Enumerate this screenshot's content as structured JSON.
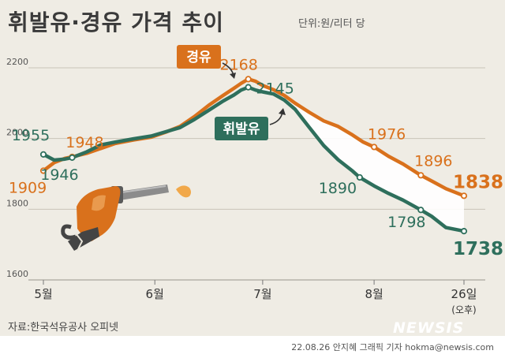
{
  "header": {
    "title": "휘발유·경유 가격 추이",
    "unit": "단위:원/리터 당"
  },
  "footer": {
    "source": "자료:한국석유공사 오피넷",
    "credit": "22.08.26 안지혜 그래픽 기자 hokma@newsis.com",
    "watermark": "NEWSIS"
  },
  "colors": {
    "diesel": "#d9711c",
    "gasoline": "#2e6f5c",
    "background": "#efece4",
    "gap_fill": "#ffffff",
    "grid": "#c9c4b8"
  },
  "icons": [
    "fuel-nozzle-icon",
    "fuel-drop-icon"
  ],
  "chart_data": {
    "type": "line",
    "title": "휘발유·경유 가격 추이",
    "xlabel": "",
    "ylabel": "",
    "ylim": [
      1600,
      2300
    ],
    "yticks": [
      1600,
      1800,
      2000,
      2200
    ],
    "x_ticks": [
      {
        "label": "5월",
        "day": 0
      },
      {
        "label": "6월",
        "day": 31
      },
      {
        "label": "7월",
        "day": 61
      },
      {
        "label": "8월",
        "day": 92
      },
      {
        "label": "26일",
        "sublabel": "(오후)",
        "day": 117
      }
    ],
    "grid": true,
    "series": [
      {
        "name": "경유",
        "color": "#d9711c",
        "labeled_points": [
          {
            "day": 0,
            "value": 1909,
            "label": "1909"
          },
          {
            "day": 8,
            "value": 1948,
            "label": "1948"
          },
          {
            "day": 57,
            "value": 2168,
            "label": "2168"
          },
          {
            "day": 92,
            "value": 1976,
            "label": "1976"
          },
          {
            "day": 105,
            "value": 1896,
            "label": "1896"
          },
          {
            "day": 117,
            "value": 1838,
            "label": "1838"
          }
        ],
        "values": [
          [
            0,
            1909
          ],
          [
            3,
            1932
          ],
          [
            6,
            1944
          ],
          [
            8,
            1948
          ],
          [
            12,
            1958
          ],
          [
            16,
            1972
          ],
          [
            20,
            1986
          ],
          [
            25,
            1996
          ],
          [
            30,
            2004
          ],
          [
            34,
            2018
          ],
          [
            38,
            2034
          ],
          [
            42,
            2062
          ],
          [
            46,
            2094
          ],
          [
            50,
            2122
          ],
          [
            53,
            2142
          ],
          [
            55,
            2156
          ],
          [
            57,
            2168
          ],
          [
            59,
            2162
          ],
          [
            61,
            2150
          ],
          [
            64,
            2138
          ],
          [
            67,
            2122
          ],
          [
            70,
            2100
          ],
          [
            74,
            2074
          ],
          [
            78,
            2050
          ],
          [
            82,
            2034
          ],
          [
            86,
            2010
          ],
          [
            89,
            1990
          ],
          [
            92,
            1976
          ],
          [
            96,
            1950
          ],
          [
            100,
            1928
          ],
          [
            105,
            1896
          ],
          [
            108,
            1880
          ],
          [
            112,
            1858
          ],
          [
            117,
            1838
          ]
        ]
      },
      {
        "name": "휘발유",
        "color": "#2e6f5c",
        "labeled_points": [
          {
            "day": 0,
            "value": 1955,
            "label": "1955"
          },
          {
            "day": 8,
            "value": 1946,
            "label": "1946"
          },
          {
            "day": 57,
            "value": 2145,
            "label": "2145"
          },
          {
            "day": 88,
            "value": 1890,
            "label": "1890"
          },
          {
            "day": 105,
            "value": 1798,
            "label": "1798"
          },
          {
            "day": 117,
            "value": 1738,
            "label": "1738"
          }
        ],
        "values": [
          [
            0,
            1955
          ],
          [
            3,
            1939
          ],
          [
            6,
            1942
          ],
          [
            8,
            1946
          ],
          [
            12,
            1962
          ],
          [
            16,
            1982
          ],
          [
            20,
            1990
          ],
          [
            25,
            1999
          ],
          [
            30,
            2007
          ],
          [
            34,
            2019
          ],
          [
            38,
            2031
          ],
          [
            42,
            2054
          ],
          [
            46,
            2080
          ],
          [
            50,
            2106
          ],
          [
            53,
            2123
          ],
          [
            55,
            2137
          ],
          [
            57,
            2145
          ],
          [
            59,
            2137
          ],
          [
            61,
            2132
          ],
          [
            64,
            2126
          ],
          [
            67,
            2109
          ],
          [
            70,
            2083
          ],
          [
            74,
            2031
          ],
          [
            78,
            1980
          ],
          [
            82,
            1940
          ],
          [
            86,
            1908
          ],
          [
            88,
            1890
          ],
          [
            92,
            1866
          ],
          [
            96,
            1845
          ],
          [
            100,
            1826
          ],
          [
            105,
            1798
          ],
          [
            108,
            1780
          ],
          [
            112,
            1748
          ],
          [
            117,
            1738
          ]
        ]
      }
    ]
  }
}
